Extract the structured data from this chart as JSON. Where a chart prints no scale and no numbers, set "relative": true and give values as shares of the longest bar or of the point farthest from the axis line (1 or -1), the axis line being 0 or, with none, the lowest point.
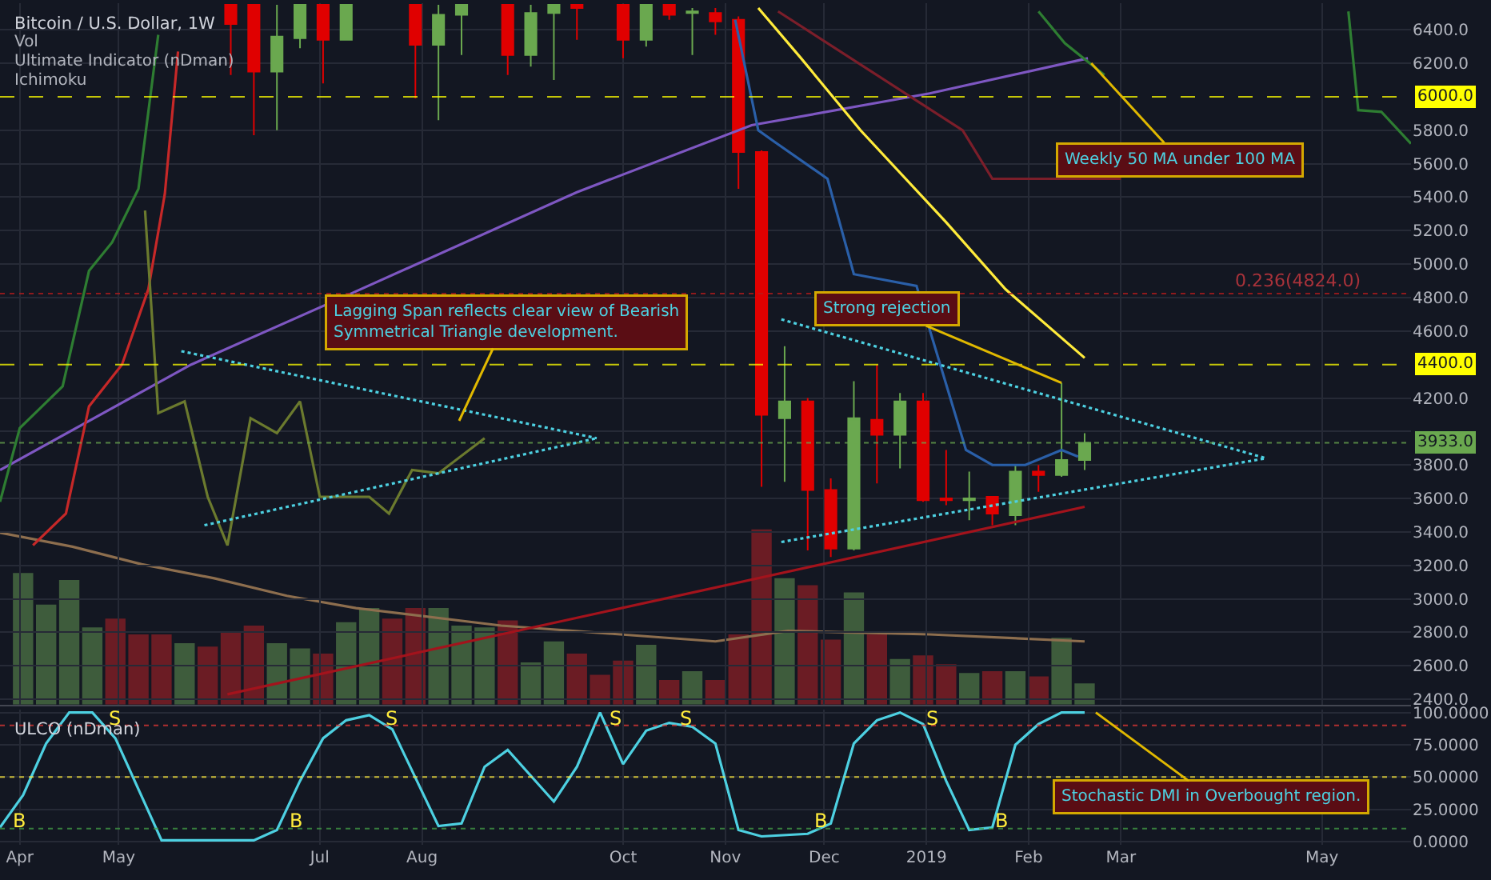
{
  "chart_data": [
    {
      "type": "candlestick",
      "title": "Bitcoin / U.S. Dollar, 1W",
      "x": [
        "2018-06-04",
        "2018-06-11",
        "2018-06-18",
        "2018-06-25",
        "2018-07-02",
        "2018-07-09",
        "2018-07-30",
        "2018-08-06",
        "2018-08-13",
        "2018-08-27",
        "2018-09-03",
        "2018-09-10",
        "2018-09-17",
        "2018-10-01",
        "2018-10-08",
        "2018-10-15",
        "2018-10-22",
        "2018-10-29",
        "2018-11-05",
        "2018-11-12",
        "2018-11-19",
        "2018-11-26",
        "2018-12-03",
        "2018-12-10",
        "2018-12-17",
        "2018-12-24",
        "2018-12-31",
        "2019-01-07",
        "2019-01-14",
        "2019-01-21",
        "2019-01-28",
        "2019-02-04",
        "2019-02-11",
        "2019-02-18"
      ],
      "ohlc": [
        [
          6550,
          6550,
          6130,
          6435
        ],
        [
          6550,
          6550,
          5770,
          6150
        ],
        [
          6150,
          6550,
          5800,
          6360
        ],
        [
          6350,
          6550,
          6290,
          6550
        ],
        [
          6550,
          6550,
          6080,
          6340
        ],
        [
          6340,
          6550,
          6340,
          6550
        ],
        [
          6550,
          6550,
          5990,
          6310
        ],
        [
          6310,
          6550,
          5860,
          6490
        ],
        [
          6490,
          6550,
          6250,
          6550
        ],
        [
          6550,
          6550,
          6130,
          6250
        ],
        [
          6250,
          6550,
          6180,
          6500
        ],
        [
          6500,
          6550,
          6100,
          6550
        ],
        [
          6550,
          6550,
          6340,
          6530
        ],
        [
          6550,
          6550,
          6230,
          6340
        ],
        [
          6340,
          6550,
          6300,
          6550
        ],
        [
          6550,
          6550,
          6460,
          6490
        ],
        [
          6500,
          6530,
          6250,
          6510
        ],
        [
          6500,
          6530,
          6370,
          6450
        ],
        [
          6460,
          6480,
          5450,
          5670
        ],
        [
          5670,
          5680,
          3670,
          4100
        ],
        [
          4080,
          4510,
          3700,
          4180
        ],
        [
          4180,
          4200,
          3290,
          3650
        ],
        [
          3650,
          3720,
          3250,
          3300
        ],
        [
          3300,
          4300,
          3290,
          4080
        ],
        [
          4070,
          4400,
          3690,
          3980
        ],
        [
          3980,
          4230,
          3780,
          4180
        ],
        [
          4180,
          4230,
          3580,
          3590
        ],
        [
          3600,
          3890,
          3560,
          3590
        ],
        [
          3590,
          3760,
          3470,
          3600
        ],
        [
          3610,
          3610,
          3440,
          3510
        ],
        [
          3500,
          3800,
          3440,
          3760
        ],
        [
          3760,
          3800,
          3640,
          3740
        ],
        [
          3740,
          4290,
          3730,
          3830
        ],
        [
          3830,
          3990,
          3770,
          3933
        ]
      ],
      "colors": [
        "#e00000",
        "#e00000",
        "#6aa84f",
        "#6aa84f",
        "#e00000",
        "#6aa84f",
        "#e00000",
        "#6aa84f",
        "#6aa84f",
        "#e00000",
        "#6aa84f",
        "#6aa84f",
        "#e00000",
        "#e00000",
        "#6aa84f",
        "#e00000",
        "#6aa84f",
        "#e00000",
        "#e00000",
        "#e00000",
        "#6aa84f",
        "#e00000",
        "#e00000",
        "#6aa84f",
        "#e00000",
        "#6aa84f",
        "#e00000",
        "#e00000",
        "#6aa84f",
        "#e00000",
        "#6aa84f",
        "#e00000",
        "#6aa84f",
        "#6aa84f"
      ],
      "series": [
        {
          "type": "line",
          "color": "#7e57c2",
          "x": [
            "2018-03-26",
            "2018-05-23",
            "2018-07-10",
            "2018-09-17",
            "2018-11-09",
            "2019-01-02",
            "2019-02-19"
          ],
          "values": [
            3770,
            4400,
            4820,
            5430,
            5830,
            6020,
            6230
          ]
        },
        {
          "type": "line",
          "color": "#ffeb3b",
          "x": [
            "2018-11-11",
            "2018-11-24",
            "2018-12-12",
            "2019-01-07",
            "2019-01-25",
            "2019-02-18"
          ],
          "values": [
            6530,
            6230,
            5800,
            5250,
            4850,
            4440
          ]
        },
        {
          "type": "line",
          "color": "#a3131c",
          "x": [
            "2018-06-03",
            "2019-02-18"
          ],
          "values": [
            2430,
            3550
          ]
        },
        {
          "type": "line",
          "color": "#2e7d32",
          "x": [
            "2018-03-26",
            "2018-04-01",
            "2018-04-14",
            "2018-04-22",
            "2018-04-29",
            "2018-05-07",
            "2018-05-13"
          ],
          "values": [
            3580,
            4020,
            4270,
            4960,
            5130,
            5450,
            6370
          ]
        },
        {
          "type": "line",
          "color": "#c62828",
          "x": [
            "2018-04-05",
            "2018-04-15",
            "2018-04-22",
            "2018-05-02",
            "2018-05-10",
            "2018-05-15",
            "2018-05-19"
          ],
          "values": [
            3320,
            3510,
            4150,
            4400,
            4850,
            5420,
            6270
          ]
        },
        {
          "type": "line",
          "color": "#6b7a2e",
          "x": [
            "2018-05-09",
            "2018-05-13",
            "2018-05-21",
            "2018-05-28",
            "2018-06-03",
            "2018-06-10",
            "2018-06-18",
            "2018-06-25",
            "2018-07-01",
            "2018-07-16",
            "2018-07-22",
            "2018-07-29",
            "2018-08-06",
            "2018-08-20"
          ],
          "values": [
            5320,
            4110,
            4180,
            3610,
            3320,
            4080,
            3990,
            4180,
            3610,
            3610,
            3510,
            3770,
            3750,
            3960
          ]
        },
        {
          "type": "line",
          "color": "#2a5fa8",
          "x": [
            "2018-11-04",
            "2018-11-11",
            "2018-11-16",
            "2018-12-02",
            "2018-12-10",
            "2018-12-29",
            "2019-01-13",
            "2019-01-21",
            "2019-01-31",
            "2019-02-11",
            "2019-02-16"
          ],
          "values": [
            6460,
            5800,
            5730,
            5510,
            4940,
            4870,
            3890,
            3800,
            3800,
            3890,
            3850
          ]
        },
        {
          "type": "line",
          "color": "#7b1e2a",
          "x": [
            "2018-11-17",
            "2019-01-12",
            "2019-01-21",
            "2019-03-01"
          ],
          "values": [
            6510,
            5800,
            5510,
            5510
          ]
        },
        {
          "type": "line",
          "color": "#2e7d32",
          "x": [
            "2019-02-04",
            "2019-02-12",
            "2019-02-24"
          ],
          "values": [
            6510,
            6320,
            6130
          ]
        },
        {
          "type": "line",
          "color": "#2e7d32",
          "x": [
            "2019-05-09",
            "2019-05-12",
            "2019-05-19",
            "2019-05-28"
          ],
          "values": [
            6510,
            5920,
            5910,
            5720
          ]
        },
        {
          "type": "line",
          "color": "#4dd0e1",
          "line_style": "dotted",
          "x": [
            "2018-11-18",
            "2019-04-14"
          ],
          "values": [
            4670,
            3840
          ]
        },
        {
          "type": "line",
          "color": "#4dd0e1",
          "line_style": "dotted",
          "x": [
            "2018-11-18",
            "2019-04-14"
          ],
          "values": [
            3340,
            3840
          ]
        },
        {
          "type": "line",
          "color": "#4dd0e1",
          "line_style": "dotted",
          "x": [
            "2018-05-20",
            "2018-09-23"
          ],
          "values": [
            4480,
            3960
          ]
        },
        {
          "type": "line",
          "color": "#4dd0e1",
          "line_style": "dotted",
          "x": [
            "2018-05-27",
            "2018-09-23"
          ],
          "values": [
            3440,
            3960
          ]
        }
      ],
      "xlim": [
        "2018-03-26",
        "2019-05-28"
      ],
      "xticks": [
        {
          "value": "2018-04-01",
          "label": null
        },
        {
          "value": "2018-05-01",
          "label": null
        },
        {
          "value": "2018-07-01",
          "label": null
        },
        {
          "value": "2018-08-01",
          "label": null
        },
        {
          "value": "2018-10-01",
          "label": null
        },
        {
          "value": "2018-11-01",
          "label": null
        },
        {
          "value": "2018-12-01",
          "label": null
        },
        {
          "value": "2019-01-01",
          "label": null
        },
        {
          "value": "2019-02-01",
          "label": null
        },
        {
          "value": "2019-03-01",
          "label": null
        },
        {
          "value": "2019-05-01",
          "label": null
        }
      ],
      "ylim": [
        2369,
        6559
      ],
      "yticks": [
        {
          "value": 2400,
          "label": "2400.0"
        },
        {
          "value": 2600,
          "label": "2600.0"
        },
        {
          "value": 2800,
          "label": "2800.0"
        },
        {
          "value": 3000,
          "label": "3000.0"
        },
        {
          "value": 3200,
          "label": "3200.0"
        },
        {
          "value": 3400,
          "label": "3400.0"
        },
        {
          "value": 3600,
          "label": "3600.0"
        },
        {
          "value": 3800,
          "label": "3800.0"
        },
        {
          "value": 4000,
          "label": null
        },
        {
          "value": 4200,
          "label": "4200.0"
        },
        {
          "value": 4600,
          "label": "4600.0"
        },
        {
          "value": 4800,
          "label": "4800.0"
        },
        {
          "value": 5000,
          "label": "5000.0"
        },
        {
          "value": 5200,
          "label": "5200.0"
        },
        {
          "value": 5400,
          "label": "5400.0"
        },
        {
          "value": 5600,
          "label": "5600.0"
        },
        {
          "value": 5800,
          "label": "5800.0"
        },
        {
          "value": 6200,
          "label": "6200.0"
        },
        {
          "value": 6400,
          "label": "6400.0"
        }
      ],
      "ref_lines": [
        {
          "axis": "y",
          "value": 6000,
          "label": "6000.0",
          "color": "#ffff00",
          "line_style": "dashed"
        },
        {
          "axis": "y",
          "value": 4400,
          "label": "4400.0",
          "color": "#ffff00",
          "line_style": "dashed"
        },
        {
          "axis": "y",
          "value": 3933,
          "label": "3933.0",
          "color": "#6aa84f",
          "line_style": "dotted"
        },
        {
          "axis": "y",
          "value": 4824,
          "color": "#b71c1c",
          "line_style": "dotted"
        }
      ],
      "annotations": [
        "Vol",
        "Ultimate Indicator (nDman)",
        "Ichimoku",
        {
          "text": "Weekly 50 MA under 100 MA",
          "x": "2019-02-20",
          "y": 6200
        },
        {
          "text": "Strong rejection",
          "x": "2019-02-11",
          "y": 4290
        },
        "Lagging Span reflects clear view of Bearish\nSymmetrical Triangle development.",
        {
          "text": "0.236(4824.0)",
          "x": "2019-04-24",
          "y": 4824
        }
      ],
      "grid": true,
      "tick_labels": "y"
    },
    {
      "type": "bar",
      "relative": true,
      "x": [
        "2018-04-02",
        "2018-04-09",
        "2018-04-16",
        "2018-04-23",
        "2018-04-30",
        "2018-05-07",
        "2018-05-14",
        "2018-05-21",
        "2018-05-28",
        "2018-06-04",
        "2018-06-11",
        "2018-06-18",
        "2018-06-25",
        "2018-07-02",
        "2018-07-09",
        "2018-07-16",
        "2018-07-23",
        "2018-07-30",
        "2018-08-06",
        "2018-08-13",
        "2018-08-20",
        "2018-08-27",
        "2018-09-03",
        "2018-09-10",
        "2018-09-17",
        "2018-09-24",
        "2018-10-01",
        "2018-10-08",
        "2018-10-15",
        "2018-10-22",
        "2018-10-29",
        "2018-11-05",
        "2018-11-12",
        "2018-11-19",
        "2018-11-26",
        "2018-12-03",
        "2018-12-10",
        "2018-12-17",
        "2018-12-24",
        "2018-12-31",
        "2019-01-07",
        "2019-01-14",
        "2019-01-21",
        "2019-01-28",
        "2019-02-04",
        "2019-02-11",
        "2019-02-18"
      ],
      "values": [
        0.75,
        0.57,
        0.71,
        0.44,
        0.49,
        0.4,
        0.4,
        0.35,
        0.33,
        0.41,
        0.45,
        0.35,
        0.32,
        0.29,
        0.47,
        0.55,
        0.49,
        0.55,
        0.55,
        0.45,
        0.44,
        0.48,
        0.24,
        0.36,
        0.29,
        0.17,
        0.25,
        0.34,
        0.14,
        0.19,
        0.14,
        0.4,
        1,
        0.72,
        0.68,
        0.37,
        0.64,
        0.4,
        0.26,
        0.28,
        0.23,
        0.18,
        0.19,
        0.19,
        0.16,
        0.38,
        0.12
      ],
      "colors": [
        "#3e5c3c",
        "#3e5c3c",
        "#3e5c3c",
        "#3e5c3c",
        "#6b1c24",
        "#6b1c24",
        "#6b1c24",
        "#3e5c3c",
        "#6b1c24",
        "#6b1c24",
        "#6b1c24",
        "#3e5c3c",
        "#3e5c3c",
        "#6b1c24",
        "#3e5c3c",
        "#3e5c3c",
        "#6b1c24",
        "#6b1c24",
        "#3e5c3c",
        "#3e5c3c",
        "#3e5c3c",
        "#6b1c24",
        "#3e5c3c",
        "#3e5c3c",
        "#6b1c24",
        "#6b1c24",
        "#6b1c24",
        "#3e5c3c",
        "#6b1c24",
        "#3e5c3c",
        "#6b1c24",
        "#6b1c24",
        "#6b1c24",
        "#3e5c3c",
        "#6b1c24",
        "#6b1c24",
        "#3e5c3c",
        "#6b1c24",
        "#3e5c3c",
        "#6b1c24",
        "#6b1c24",
        "#3e5c3c",
        "#6b1c24",
        "#3e5c3c",
        "#6b1c24",
        "#3e5c3c",
        "#3e5c3c"
      ],
      "series": [
        {
          "type": "line",
          "color": "#8d6e4e",
          "x": [
            "2018-03-26",
            "2018-04-17",
            "2018-05-08",
            "2018-05-30",
            "2018-06-21",
            "2018-07-12",
            "2018-08-25",
            "2018-10-29",
            "2018-11-20",
            "2019-01-02",
            "2019-02-18"
          ],
          "values": [
            0.98,
            0.9,
            0.8,
            0.72,
            0.62,
            0.55,
            0.45,
            0.36,
            0.42,
            0.4,
            0.36
          ]
        }
      ],
      "xlim": [
        "2018-03-26",
        "2019-05-28"
      ],
      "tick_labels": false
    },
    {
      "type": "line",
      "title": "ULCO (nDman)",
      "x": [
        "2018-03-26",
        "2018-04-02",
        "2018-04-09",
        "2018-04-16",
        "2018-04-23",
        "2018-04-30",
        "2018-05-14",
        "2018-06-11",
        "2018-06-18",
        "2018-06-25",
        "2018-07-02",
        "2018-07-09",
        "2018-07-16",
        "2018-07-23",
        "2018-08-06",
        "2018-08-13",
        "2018-08-20",
        "2018-08-27",
        "2018-09-10",
        "2018-09-17",
        "2018-09-24",
        "2018-10-01",
        "2018-10-08",
        "2018-10-15",
        "2018-10-22",
        "2018-10-29",
        "2018-11-05",
        "2018-11-12",
        "2018-11-26",
        "2018-12-03",
        "2018-12-10",
        "2018-12-17",
        "2018-12-24",
        "2018-12-31",
        "2019-01-07",
        "2019-01-14",
        "2019-01-21",
        "2019-01-28",
        "2019-02-04",
        "2019-02-11",
        "2019-02-18"
      ],
      "series": [
        {
          "color": "#4dd0e1",
          "values": [
            11,
            36,
            76,
            100,
            100,
            80,
            1,
            1,
            9,
            47,
            80,
            94,
            98,
            87,
            12,
            14,
            58,
            71,
            31,
            58,
            100,
            60,
            86,
            92,
            89,
            76,
            9,
            4,
            6,
            14,
            76,
            94,
            100,
            91,
            47,
            9,
            11,
            75,
            91,
            100,
            100
          ]
        }
      ],
      "xlim": [
        "2018-03-26",
        "2019-05-28"
      ],
      "xticks": [
        {
          "value": "2018-04-01",
          "label": "Apr"
        },
        {
          "value": "2018-05-01",
          "label": "May"
        },
        {
          "value": "2018-07-01",
          "label": "Jul"
        },
        {
          "value": "2018-08-01",
          "label": "Aug"
        },
        {
          "value": "2018-10-01",
          "label": "Oct"
        },
        {
          "value": "2018-11-01",
          "label": "Nov"
        },
        {
          "value": "2018-12-01",
          "label": "Dec"
        },
        {
          "value": "2019-01-01",
          "label": "2019"
        },
        {
          "value": "2019-02-01",
          "label": "Feb"
        },
        {
          "value": "2019-03-01",
          "label": "Mar"
        },
        {
          "value": "2019-05-01",
          "label": "May"
        }
      ],
      "ylim": [
        -2.5,
        102.5
      ],
      "yticks": [
        {
          "value": 0,
          "label": "0.0000"
        },
        {
          "value": 25,
          "label": "25.0000"
        },
        {
          "value": 50,
          "label": "50.0000"
        },
        {
          "value": 75,
          "label": "75.0000"
        },
        {
          "value": 100,
          "label": "100.0000"
        }
      ],
      "ref_lines": [
        {
          "axis": "y",
          "value": 90,
          "color": "#e53935",
          "line_style": "dotted"
        },
        {
          "axis": "y",
          "value": 50,
          "color": "#ffeb3b",
          "line_style": "dotted"
        },
        {
          "axis": "y",
          "value": 10,
          "color": "#43a047",
          "line_style": "dotted"
        }
      ],
      "annotations": [
        {
          "text": "S",
          "x": "2018-04-30",
          "y": 96
        },
        {
          "text": "S",
          "x": "2018-07-23",
          "y": 96
        },
        {
          "text": "S",
          "x": "2018-09-29",
          "y": 96
        },
        {
          "text": "S",
          "x": "2018-10-20",
          "y": 96
        },
        {
          "text": "S",
          "x": "2019-01-03",
          "y": 96
        },
        {
          "text": "B",
          "x": "2018-04-01",
          "y": 16
        },
        {
          "text": "B",
          "x": "2018-06-24",
          "y": 16
        },
        {
          "text": "B",
          "x": "2018-11-30",
          "y": 16
        },
        {
          "text": "B",
          "x": "2019-01-24",
          "y": 16
        },
        "Stochastic DMI in Overbought region."
      ],
      "grid": true
    }
  ]
}
